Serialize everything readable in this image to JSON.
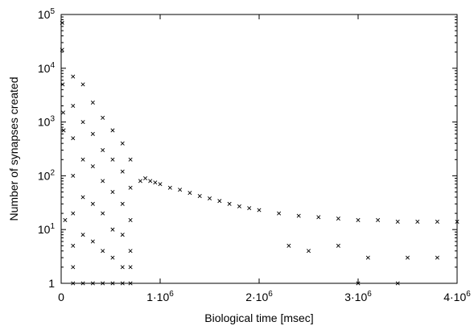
{
  "chart_data": {
    "type": "scatter",
    "title": "",
    "xlabel": "Biological time [msec]",
    "ylabel": "Number of synapses created",
    "x_scale": "linear",
    "y_scale": "log",
    "xlim": [
      0,
      4000000
    ],
    "ylim": [
      1,
      100000
    ],
    "grid": false,
    "legend": "none",
    "marker": "x",
    "marker_color": "#000000",
    "x_ticks": [
      {
        "value": 0,
        "label": "0"
      },
      {
        "value": 1000000,
        "label": "1·10^6",
        "base": "1·10",
        "exp": "6"
      },
      {
        "value": 2000000,
        "label": "2·10^6",
        "base": "2·10",
        "exp": "6"
      },
      {
        "value": 3000000,
        "label": "3·10^6",
        "base": "3·10",
        "exp": "6"
      },
      {
        "value": 4000000,
        "label": "4·10^6",
        "base": "4·10",
        "exp": "6"
      }
    ],
    "y_ticks": [
      {
        "value": 1,
        "label": "1"
      },
      {
        "value": 10,
        "label": "10^1",
        "base": "10",
        "exp": "1"
      },
      {
        "value": 100,
        "label": "10^2",
        "base": "10",
        "exp": "2"
      },
      {
        "value": 1000,
        "label": "10^3",
        "base": "10",
        "exp": "3"
      },
      {
        "value": 10000,
        "label": "10^4",
        "base": "10",
        "exp": "4"
      },
      {
        "value": 100000,
        "label": "10^5",
        "base": "10",
        "exp": "5"
      }
    ],
    "series": [
      {
        "points": [
          [
            10000,
            70000
          ],
          [
            10000,
            22000
          ],
          [
            15000,
            5000
          ],
          [
            20000,
            1500
          ],
          [
            25000,
            700
          ],
          [
            40000,
            15
          ],
          [
            120000,
            7000
          ],
          [
            120000,
            2000
          ],
          [
            120000,
            500
          ],
          [
            120000,
            100
          ],
          [
            120000,
            20
          ],
          [
            120000,
            5
          ],
          [
            120000,
            2
          ],
          [
            120000,
            1
          ],
          [
            220000,
            5000
          ],
          [
            220000,
            1000
          ],
          [
            220000,
            200
          ],
          [
            220000,
            40
          ],
          [
            220000,
            8
          ],
          [
            220000,
            1
          ],
          [
            320000,
            2300
          ],
          [
            320000,
            600
          ],
          [
            320000,
            150
          ],
          [
            320000,
            30
          ],
          [
            320000,
            6
          ],
          [
            320000,
            1
          ],
          [
            420000,
            1200
          ],
          [
            420000,
            300
          ],
          [
            420000,
            80
          ],
          [
            420000,
            20
          ],
          [
            420000,
            4
          ],
          [
            420000,
            1
          ],
          [
            520000,
            700
          ],
          [
            520000,
            200
          ],
          [
            520000,
            50
          ],
          [
            520000,
            10
          ],
          [
            520000,
            3
          ],
          [
            520000,
            1
          ],
          [
            620000,
            400
          ],
          [
            620000,
            120
          ],
          [
            620000,
            30
          ],
          [
            620000,
            8
          ],
          [
            620000,
            2
          ],
          [
            620000,
            1
          ],
          [
            700000,
            200
          ],
          [
            700000,
            60
          ],
          [
            700000,
            15
          ],
          [
            700000,
            4
          ],
          [
            700000,
            2
          ],
          [
            700000,
            1
          ],
          [
            800000,
            80
          ],
          [
            850000,
            90
          ],
          [
            900000,
            80
          ],
          [
            950000,
            75
          ],
          [
            1000000,
            70
          ],
          [
            1100000,
            60
          ],
          [
            1200000,
            55
          ],
          [
            1300000,
            48
          ],
          [
            1400000,
            42
          ],
          [
            1500000,
            38
          ],
          [
            1600000,
            34
          ],
          [
            1700000,
            30
          ],
          [
            1800000,
            27
          ],
          [
            1900000,
            25
          ],
          [
            2000000,
            23
          ],
          [
            2200000,
            20
          ],
          [
            2400000,
            18
          ],
          [
            2600000,
            17
          ],
          [
            2800000,
            16
          ],
          [
            3000000,
            15
          ],
          [
            3200000,
            15
          ],
          [
            3400000,
            14
          ],
          [
            3600000,
            14
          ],
          [
            3800000,
            14
          ],
          [
            4000000,
            14
          ],
          [
            2300000,
            5
          ],
          [
            2500000,
            4
          ],
          [
            2800000,
            5
          ],
          [
            3100000,
            3
          ],
          [
            3500000,
            3
          ],
          [
            3800000,
            3
          ],
          [
            3000000,
            1
          ],
          [
            3400000,
            1
          ]
        ]
      }
    ]
  }
}
